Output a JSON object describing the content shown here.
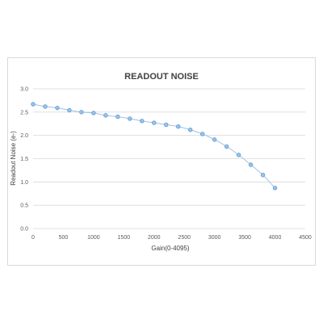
{
  "chart_data": {
    "type": "scatter",
    "title": "READOUT NOISE",
    "xlabel": "Gain(0-4095)",
    "ylabel": "Readout Noise (e-)",
    "xlim": [
      0,
      4500
    ],
    "ylim": [
      0,
      3.0
    ],
    "x_ticks": [
      "0",
      "500",
      "1000",
      "1500",
      "2000",
      "2500",
      "3000",
      "3500",
      "4000",
      "4500"
    ],
    "y_ticks": [
      "0.0",
      "0.5",
      "1.0",
      "1.5",
      "2.0",
      "2.5",
      "3.0"
    ],
    "grid": "horizontal",
    "trendline": true,
    "colors": {
      "marker_fill": "#9dc3e6",
      "marker_stroke": "#5b9bd5",
      "line": "#9dc3e6",
      "grid": "#d9d9d9"
    },
    "series": [
      {
        "x": [
          0,
          200,
          400,
          600,
          800,
          1000,
          1200,
          1400,
          1600,
          1800,
          2000,
          2200,
          2400,
          2600,
          2800,
          3000,
          3200,
          3400,
          3600,
          3800,
          4000
        ],
        "y": [
          2.67,
          2.62,
          2.59,
          2.54,
          2.5,
          2.48,
          2.43,
          2.4,
          2.36,
          2.31,
          2.27,
          2.23,
          2.19,
          2.12,
          2.03,
          1.91,
          1.76,
          1.58,
          1.37,
          1.15,
          0.87
        ]
      }
    ]
  }
}
